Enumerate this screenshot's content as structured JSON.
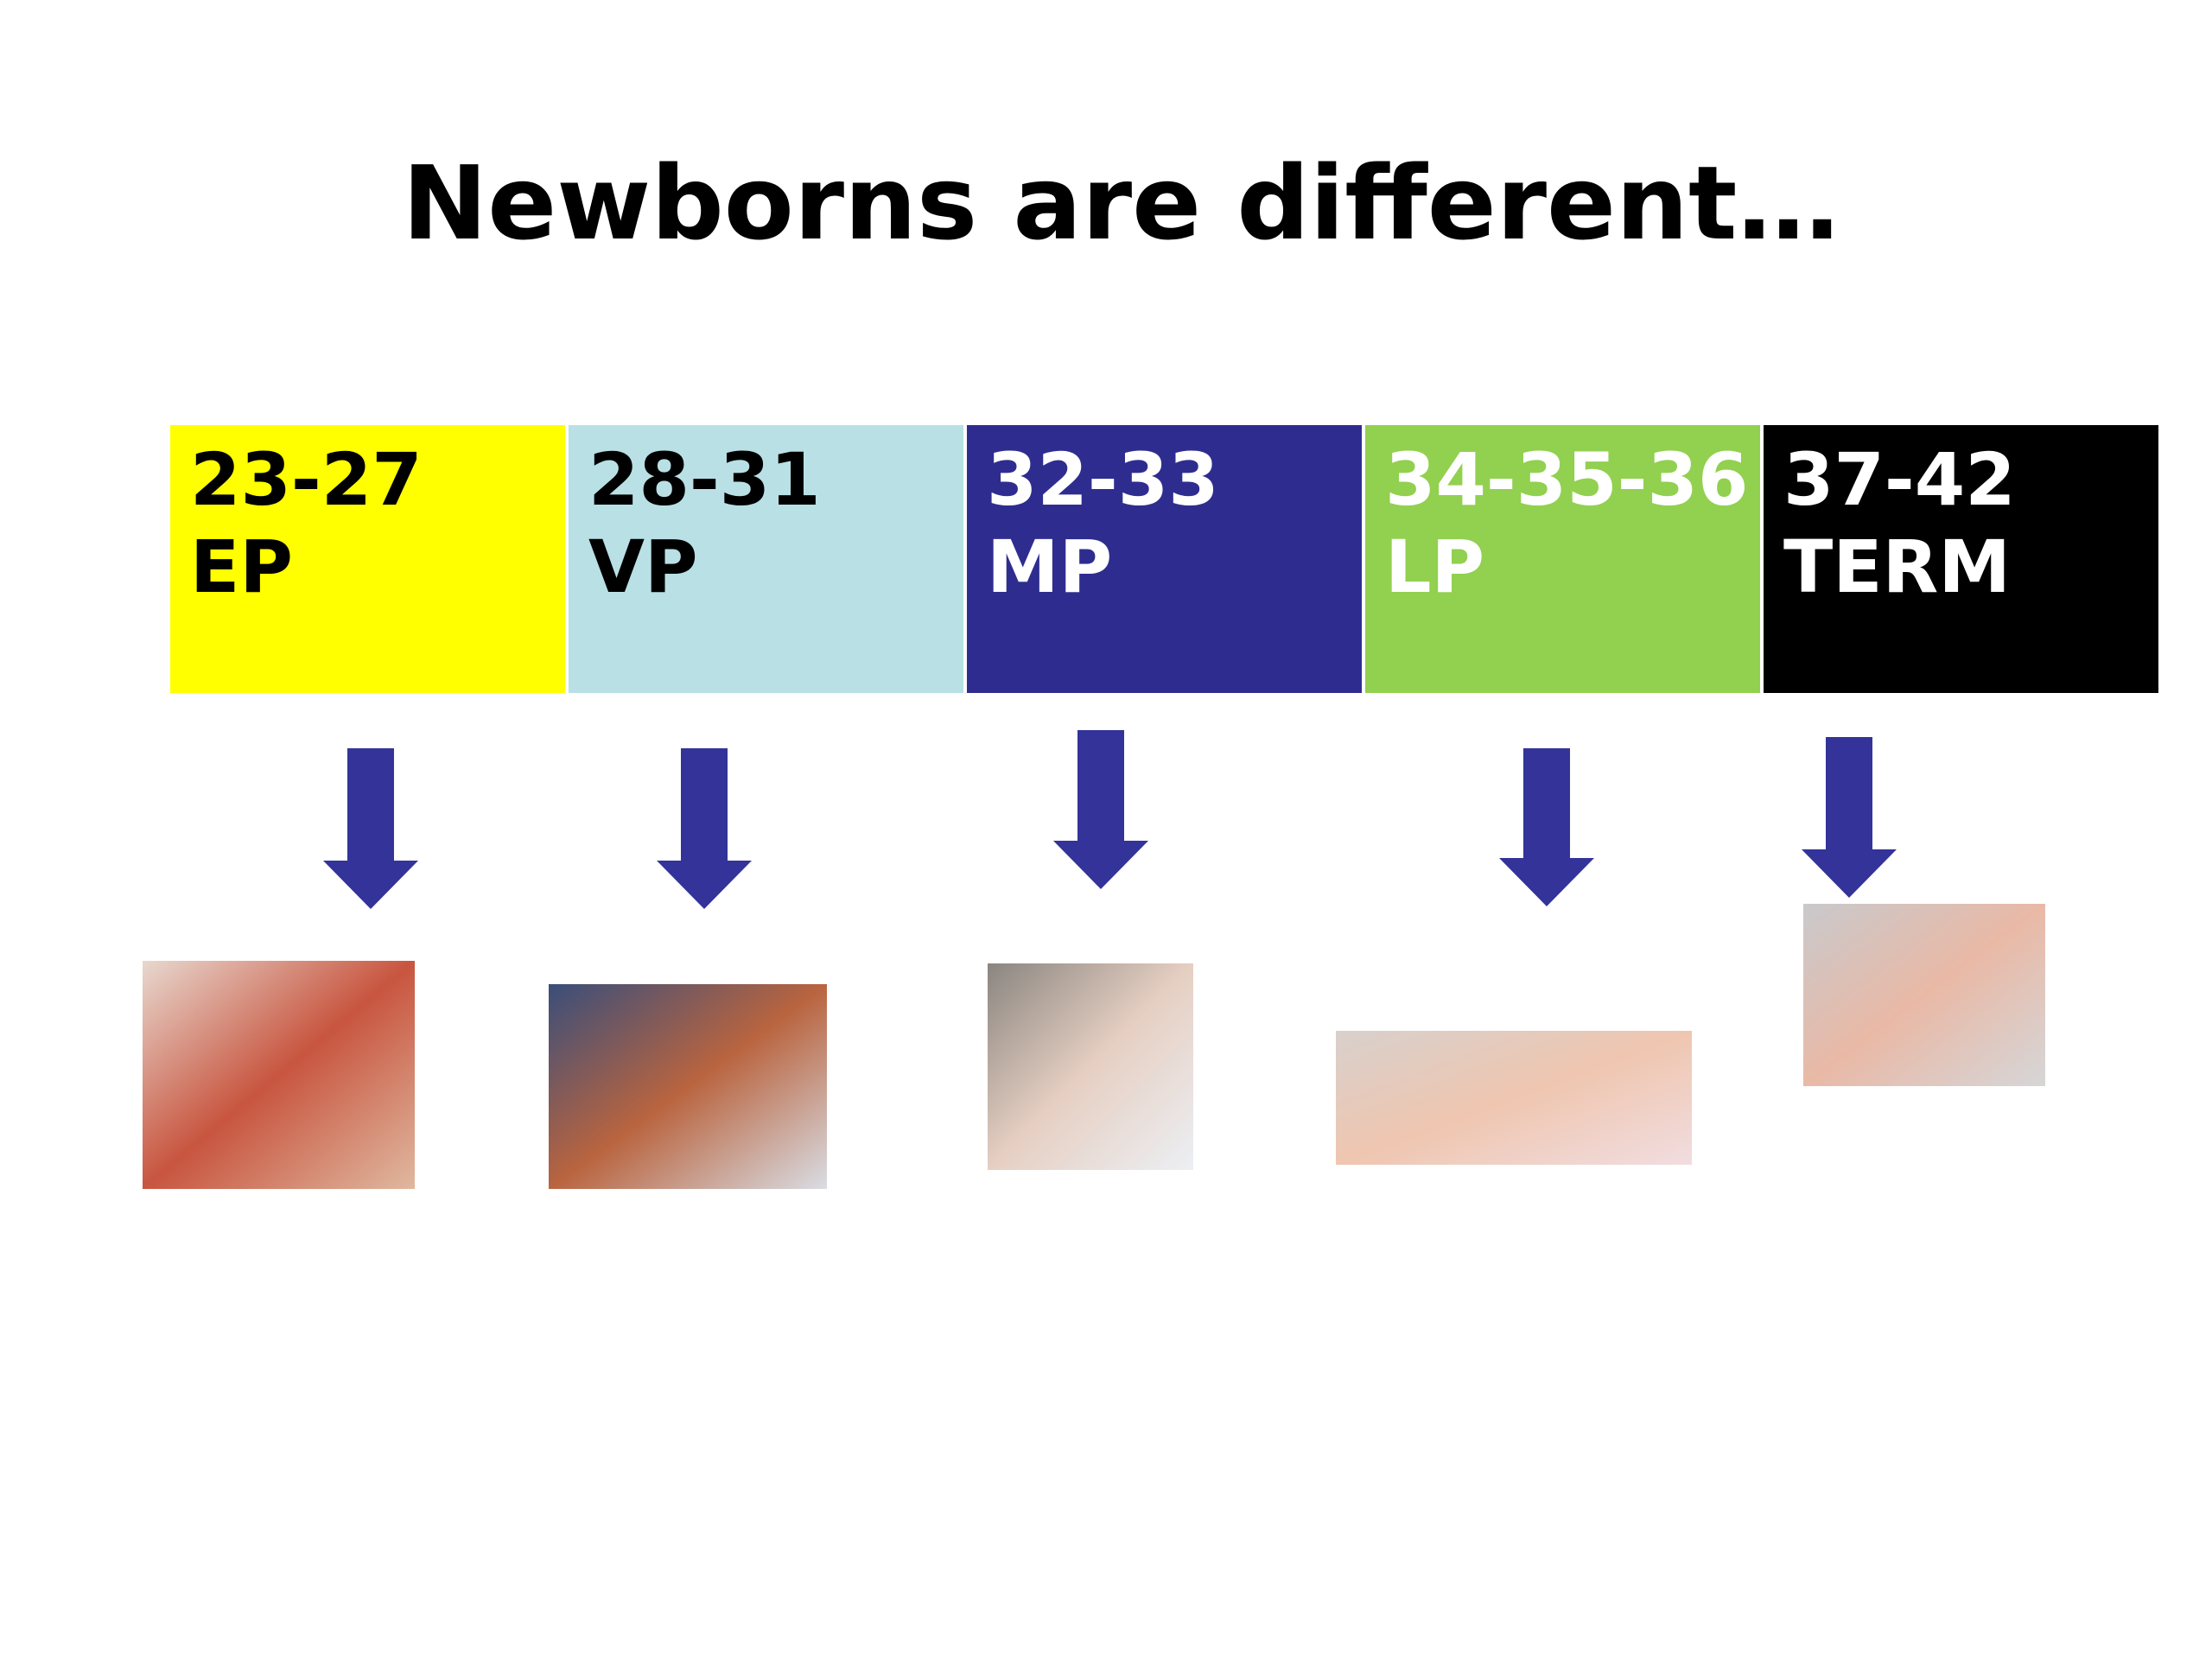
{
  "title": "Newborns are different…",
  "stages": [
    {
      "range": "23-27",
      "label": "EP",
      "color": "#ffff00",
      "text_color": "#000000"
    },
    {
      "range": "28-31",
      "label": "VP",
      "color": "#b9e0e5",
      "text_color": "#000000"
    },
    {
      "range": "32-33",
      "label": "MP",
      "color": "#2e2d8f",
      "text_color": "#ffffff"
    },
    {
      "range": "34-35-36",
      "label": "LP",
      "color": "#92d050",
      "text_color": "#ffffff"
    },
    {
      "range": "37-42",
      "label": "TERM",
      "color": "#000000",
      "text_color": "#ffffff"
    }
  ]
}
